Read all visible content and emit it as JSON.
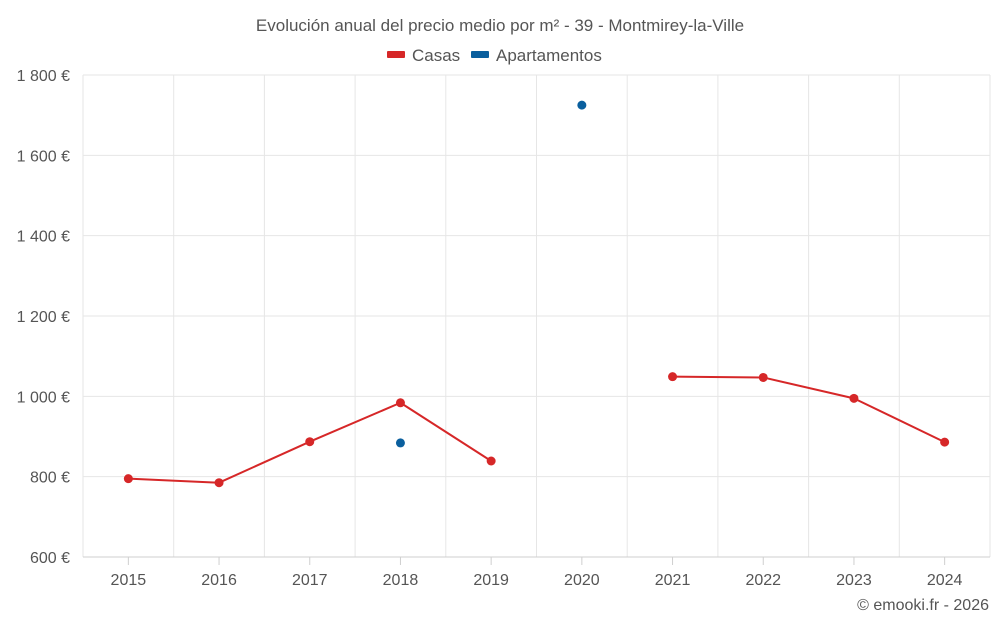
{
  "chart_data": {
    "type": "line",
    "title": "Evolución anual del precio medio por m² - 39 - Montmirey-la-Ville",
    "categories": [
      "2015",
      "2016",
      "2017",
      "2018",
      "2019",
      "2020",
      "2021",
      "2022",
      "2023",
      "2024"
    ],
    "ylim": [
      600,
      1800
    ],
    "yticks": [
      600,
      800,
      1000,
      1200,
      1400,
      1600,
      1800
    ],
    "ytick_labels": [
      "600 €",
      "800 €",
      "1 000 €",
      "1 200 €",
      "1 400 €",
      "1 600 €",
      "1 800 €"
    ],
    "xlabel": "",
    "ylabel": "",
    "grid": true,
    "legend_position": "top-center",
    "series": [
      {
        "name": "Casas",
        "color": "#d62728",
        "values": [
          795,
          785,
          887,
          984,
          839,
          null,
          1049,
          1047,
          995,
          886
        ]
      },
      {
        "name": "Apartamentos",
        "color": "#0a5f9e",
        "values": [
          null,
          null,
          null,
          884,
          null,
          1725,
          null,
          null,
          null,
          null
        ]
      }
    ]
  },
  "credit": "© emooki.fr - 2026"
}
